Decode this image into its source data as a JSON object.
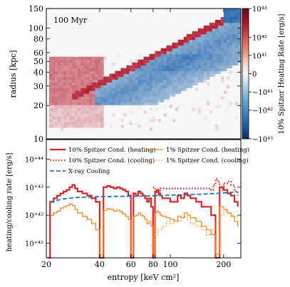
{
  "chart_data": [
    {
      "type": "heatmap",
      "annotation": "100 Myr",
      "ylabel": "radius [kpc]",
      "yscale": "log",
      "xscale": "log",
      "xlim": [
        20,
        250
      ],
      "ylim": [
        10,
        150
      ],
      "ytick_labels": [
        "10",
        "20",
        "30",
        "40",
        "50",
        "60",
        "80",
        "100",
        "150"
      ],
      "ytick_values": [
        10,
        20,
        30,
        40,
        50,
        60,
        80,
        100,
        150
      ],
      "colorbar": {
        "label": "10% Spitzer Heating Rate [erg/s]",
        "scale": "symlog",
        "range": [
          -1e+43,
          1e+43
        ],
        "tick_labels": [
          "10⁴³",
          "10⁴²",
          "10⁴¹",
          "0",
          "−10⁴¹",
          "−10⁴²",
          "−10⁴³"
        ],
        "colors": {
          "positive": "#b2182b",
          "zero": "#f7f7f7",
          "negative": "#2166ac"
        }
      },
      "features": [
        {
          "name": "heating-ridge",
          "sign": "positive",
          "entropy": [
            30,
            250
          ],
          "radius": [
            25,
            140
          ]
        },
        {
          "name": "cooling-wedge",
          "sign": "negative",
          "entropy": [
            40,
            250
          ],
          "radius": [
            22,
            60
          ]
        },
        {
          "name": "heating-outer",
          "sign": "positive",
          "entropy": [
            22,
            40
          ],
          "radius": [
            12,
            60
          ]
        }
      ]
    },
    {
      "type": "line",
      "xlabel": "entropy [keV cm²]",
      "ylabel": "heating/cooling rate [erg/s]",
      "xscale": "log",
      "yscale": "log",
      "xlim": [
        20,
        250
      ],
      "ylim": [
        3e+40,
        5e+44
      ],
      "xtick_labels": [
        "20",
        "40",
        "60",
        "80",
        "100",
        "200"
      ],
      "xtick_values": [
        20,
        40,
        60,
        80,
        100,
        200
      ],
      "ytick_labels": [
        "10⁺⁴¹",
        "10⁺⁴²",
        "10⁺⁴³",
        "10⁺⁴⁴"
      ],
      "ytick_values": [
        1e+41,
        1e+42,
        1e+43,
        1e+44
      ],
      "legend": "upper",
      "series": [
        {
          "name": "10% Spitzer Cond. (heating)",
          "color": "#d62728",
          "style": "solid",
          "x": [
            20.5,
            21,
            22,
            23,
            24,
            25,
            26,
            27,
            28,
            29,
            30,
            32,
            34,
            36,
            38,
            40,
            42,
            44,
            46,
            48,
            50,
            52,
            54,
            56,
            58,
            60,
            62,
            64,
            66,
            68,
            70,
            72,
            74,
            76,
            78,
            80,
            82,
            84,
            86,
            88,
            90,
            95,
            100,
            105,
            110,
            115,
            120,
            125,
            130,
            140,
            150,
            160,
            170,
            180,
            190,
            200,
            210,
            220,
            230,
            240
          ],
          "y": [
            3e+40,
            3e+42,
            4e+42,
            5e+42,
            6e+42,
            7e+42,
            8e+42,
            1e+43,
            1.2e+43,
            9e+42,
            7e+42,
            6e+42,
            5e+42,
            4e+42,
            3e+42,
            2e+40,
            1e+43,
            1.1e+43,
            1e+43,
            9e+42,
            1e+43,
            9e+42,
            8e+42,
            7e+42,
            5e+42,
            2e+40,
            6e+42,
            5e+42,
            7e+42,
            6e+42,
            5e+42,
            4e+42,
            3e+42,
            4e+42,
            2e+42,
            2e+40,
            7e+42,
            8e+42,
            6e+42,
            5e+42,
            4e+42,
            4e+42,
            3e+42,
            3e+42,
            5e+42,
            4e+42,
            6e+42,
            5e+42,
            4e+42,
            3e+42,
            2e+42,
            2e+42,
            1e+42,
            3e+40,
            1e+43,
            8e+42,
            6e+42,
            5e+42,
            3e+42,
            2e+42
          ]
        },
        {
          "name": "10% Spitzer Cond. (cooling)",
          "color": "#d62728",
          "style": "dotted",
          "x": [
            80,
            82,
            84,
            86,
            88,
            170,
            175,
            180,
            185,
            190,
            195,
            200,
            210,
            220,
            230,
            240
          ],
          "y": [
            1e+43,
            8e+42,
            5e+42,
            6e+42,
            9e+42,
            8e+42,
            1.2e+43,
            2e+43,
            1.5e+43,
            1e+43,
            8e+42,
            1.4e+43,
            1.6e+43,
            1.2e+43,
            7e+42,
            5e+42
          ]
        },
        {
          "name": "X-ray Cooling",
          "color": "#1f77b4",
          "style": "dashed",
          "x": [
            21,
            25,
            30,
            40,
            50,
            60,
            80,
            100,
            150,
            200,
            240
          ],
          "y": [
            3e+42,
            3.8e+42,
            4.3e+42,
            4.6e+42,
            4.7e+42,
            4.7e+42,
            4.9e+42,
            5.2e+42,
            5.6e+42,
            6.2e+42,
            6.8e+42
          ]
        },
        {
          "name": "1% Spitzer Cond. (heating)",
          "color": "#ff7f0e",
          "style": "solid",
          "x": [
            21,
            22,
            23,
            24,
            25,
            26,
            27,
            28,
            29,
            30,
            32,
            34,
            36,
            38,
            40,
            42,
            44,
            46,
            48,
            50,
            52,
            54,
            56,
            58,
            60,
            62,
            64,
            66,
            68,
            70,
            72,
            74,
            76,
            78,
            80,
            82,
            84,
            86,
            88,
            90,
            95,
            100,
            105,
            110,
            115,
            120,
            125,
            130,
            140,
            150,
            160,
            170,
            180,
            190,
            200,
            210,
            220,
            230,
            240
          ],
          "y": [
            1e+42,
            1.2e+42,
            1.4e+42,
            1.8e+42,
            2e+42,
            2.2e+42,
            2.5e+42,
            2.2e+42,
            1.6e+42,
            1.2e+42,
            9e+41,
            7e+41,
            5e+41,
            3e+41,
            4e+40,
            1.5e+42,
            1.7e+42,
            1.6e+42,
            1.4e+42,
            1.5e+42,
            1.3e+42,
            1.1e+42,
            9e+41,
            7e+41,
            4e+40,
            9e+41,
            1e+42,
            1.2e+42,
            1e+42,
            9e+41,
            7e+41,
            5e+41,
            6e+41,
            4e+41,
            4e+40,
            1.2e+42,
            1.4e+42,
            1.2e+42,
            1e+42,
            9e+41,
            8e+41,
            7e+41,
            6e+41,
            9e+41,
            8e+41,
            1.2e+42,
            1e+42,
            8e+41,
            6e+41,
            4e+41,
            3e+41,
            2e+41,
            4e+40,
            2e+42,
            1.6e+42,
            1.2e+42,
            9e+41,
            6e+41,
            4e+41
          ]
        },
        {
          "name": "1% Spitzer Cond. (cooling)",
          "color": "#ff7f0e",
          "style": "dotted",
          "x": [
            78,
            80,
            85,
            90,
            95,
            100,
            105,
            110,
            115,
            120,
            125,
            130,
            140,
            150,
            160,
            170,
            180,
            190,
            200,
            210,
            220,
            230,
            240
          ],
          "y": [
            8e+40,
            2e+41,
            3e+41,
            4e+41,
            6e+41,
            5e+41,
            7e+41,
            6e+41,
            8e+41,
            9e+41,
            7e+41,
            5e+41,
            4e+41,
            3e+41,
            2e+41,
            3e+41,
            5e+41,
            1e+42,
            1.4e+42,
            1.2e+42,
            1e+42,
            9e+41,
            8e+41
          ]
        }
      ]
    }
  ]
}
